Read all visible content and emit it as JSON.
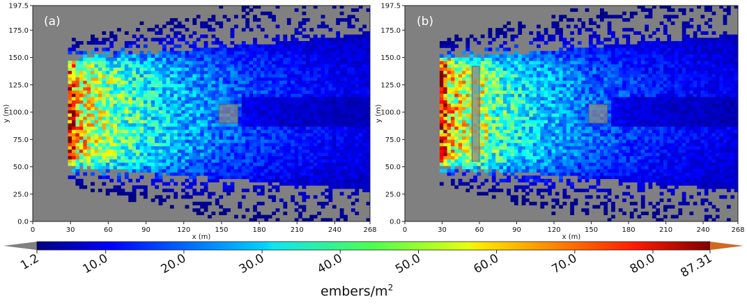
{
  "chart_data": [
    {
      "type": "heatmap",
      "panel_label": "(a)",
      "xlabel": "x (m)",
      "ylabel": "y (m)",
      "xlim": [
        0,
        268
      ],
      "ylim": [
        0.0,
        197.5
      ],
      "xticks": [
        "0",
        "30",
        "60",
        "90",
        "120",
        "150",
        "180",
        "210",
        "240",
        "268"
      ],
      "yticks": [
        "0.0",
        "25.0",
        "50.0",
        "75.0",
        "100.0",
        "125.0",
        "150.0",
        "175.0",
        "197.5"
      ],
      "background_color": "#808080",
      "ember_source_x": 28,
      "plume_y_range_at_source": [
        48,
        148
      ],
      "obstacles": [
        {
          "kind": "building",
          "x_range": [
            148,
            163
          ],
          "y_range": [
            90,
            107
          ]
        }
      ]
    },
    {
      "type": "heatmap",
      "panel_label": "(b)",
      "xlabel": "x (m)",
      "ylabel": "y (m)",
      "xlim": [
        0,
        268
      ],
      "ylim": [
        0.0,
        197.5
      ],
      "xticks": [
        "0",
        "30",
        "60",
        "90",
        "120",
        "150",
        "180",
        "210",
        "240",
        "268"
      ],
      "yticks": [
        "0.0",
        "25.0",
        "50.0",
        "75.0",
        "100.0",
        "125.0",
        "150.0",
        "175.0",
        "197.5"
      ],
      "background_color": "#808080",
      "ember_source_x": 28,
      "plume_y_range_at_source": [
        48,
        148
      ],
      "obstacles": [
        {
          "kind": "barrier",
          "x_range": [
            54,
            60
          ],
          "y_range": [
            55,
            142
          ]
        },
        {
          "kind": "building",
          "x_range": [
            148,
            163
          ],
          "y_range": [
            90,
            107
          ]
        }
      ]
    }
  ],
  "colorbar": {
    "label_base": "embers/m",
    "label_exp": "2",
    "min": 1.2,
    "max": 87.31,
    "ticks": [
      "1.2",
      "10.0",
      "20.0",
      "30.0",
      "40.0",
      "50.0",
      "60.0",
      "70.0",
      "80.0",
      "87.31"
    ],
    "tick_values": [
      1.2,
      10.0,
      20.0,
      30.0,
      40.0,
      50.0,
      60.0,
      70.0,
      80.0,
      87.31
    ],
    "colormap": "jet",
    "under_color": "#808080",
    "over_color": "#d2691e"
  }
}
